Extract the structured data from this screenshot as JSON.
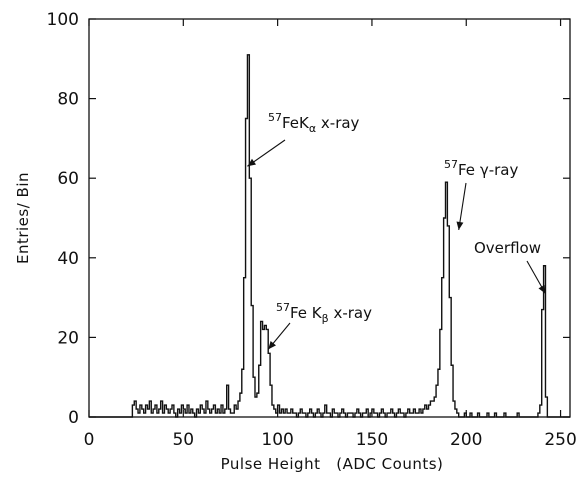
{
  "chart_data": {
    "type": "bar",
    "title": "",
    "xlabel": "Pulse Height   (ADC Counts)",
    "ylabel": "Entries/ Bin",
    "xlim": [
      0,
      255
    ],
    "ylim": [
      0,
      100
    ],
    "grid": false,
    "x_ticks": [
      {
        "value": 0,
        "label": "0"
      },
      {
        "value": 50,
        "label": "50"
      },
      {
        "value": 100,
        "label": "100"
      },
      {
        "value": 150,
        "label": "150"
      },
      {
        "value": 200,
        "label": "200"
      },
      {
        "value": 250,
        "label": "250"
      }
    ],
    "y_ticks": [
      {
        "value": 0,
        "label": "0"
      },
      {
        "value": 20,
        "label": "20"
      },
      {
        "value": 40,
        "label": "40"
      },
      {
        "value": 60,
        "label": "60"
      },
      {
        "value": 80,
        "label": "80"
      },
      {
        "value": 100,
        "label": "100"
      }
    ],
    "bin_width": 1,
    "series": [
      {
        "bins": [
          {
            "x": 0,
            "values": [
              0,
              0,
              0,
              0,
              0,
              0,
              0,
              0,
              0,
              0,
              0,
              0,
              0,
              0,
              0,
              0,
              0,
              0,
              0,
              0,
              0,
              0,
              0,
              3,
              4,
              2,
              1,
              3,
              2,
              1,
              3,
              2,
              4,
              1,
              2,
              3,
              1,
              2,
              4,
              1,
              3,
              2,
              1,
              2,
              3,
              1,
              0,
              2,
              1,
              3,
              2,
              1,
              3,
              1,
              2,
              1,
              0,
              2,
              1,
              3,
              2,
              1,
              4,
              2,
              1,
              2,
              3,
              1,
              2,
              1,
              3,
              1,
              2,
              8,
              2,
              1,
              1,
              3,
              2,
              4,
              6,
              12,
              35,
              75,
              91,
              60,
              28,
              10,
              5,
              6,
              13,
              24,
              22,
              23,
              22,
              16,
              8,
              3,
              2,
              1,
              3,
              1,
              2,
              1,
              2,
              1,
              1,
              2,
              1,
              1,
              0,
              1,
              2,
              1,
              1,
              0,
              1,
              2,
              1,
              0,
              1,
              2,
              1,
              0,
              1,
              3,
              1,
              1,
              0,
              2,
              1,
              1,
              0,
              1,
              2,
              1,
              0,
              1,
              1,
              1,
              0,
              1,
              2,
              1,
              0,
              1,
              1,
              2,
              0,
              1,
              2,
              1,
              1,
              0,
              1,
              2,
              1,
              0,
              1,
              1,
              2,
              1,
              0,
              1,
              2,
              1,
              1,
              0,
              1,
              2,
              1,
              1,
              2,
              1,
              1,
              2,
              1,
              2,
              3,
              2,
              3,
              4,
              4,
              5,
              8,
              12,
              22,
              35,
              50,
              59,
              48,
              30,
              13,
              4,
              2,
              1,
              0,
              0,
              0,
              1,
              0,
              0,
              1,
              0,
              0,
              0,
              1,
              0,
              0,
              0,
              0,
              1,
              0,
              0,
              0,
              1,
              0,
              0,
              0,
              0,
              1,
              0,
              0,
              0,
              0,
              0,
              0,
              1,
              0,
              0,
              0,
              0,
              0,
              0,
              0,
              0,
              0,
              0,
              1,
              3,
              27,
              38,
              5,
              0,
              0,
              0,
              0,
              0,
              0,
              0,
              0,
              0,
              0,
              0,
              0
            ]
          }
        ]
      }
    ],
    "annotations": [
      {
        "sup": "57",
        "text": "FeK",
        "sub": "α",
        "after": " x-ray",
        "points_to": {
          "x": 84,
          "y": 63
        }
      },
      {
        "sup": "57",
        "text": "Fe K",
        "sub": "β",
        "after": " x-ray",
        "points_to": {
          "x": 95,
          "y": 17
        }
      },
      {
        "sup": "57",
        "text": "Fe ",
        "sub": "",
        "greek": "γ",
        "after": "-ray",
        "points_to": {
          "x": 196,
          "y": 47
        }
      },
      {
        "sup": "",
        "text": "Overflow",
        "sub": "",
        "after": "",
        "points_to": {
          "x": 242,
          "y": 31
        }
      }
    ]
  }
}
